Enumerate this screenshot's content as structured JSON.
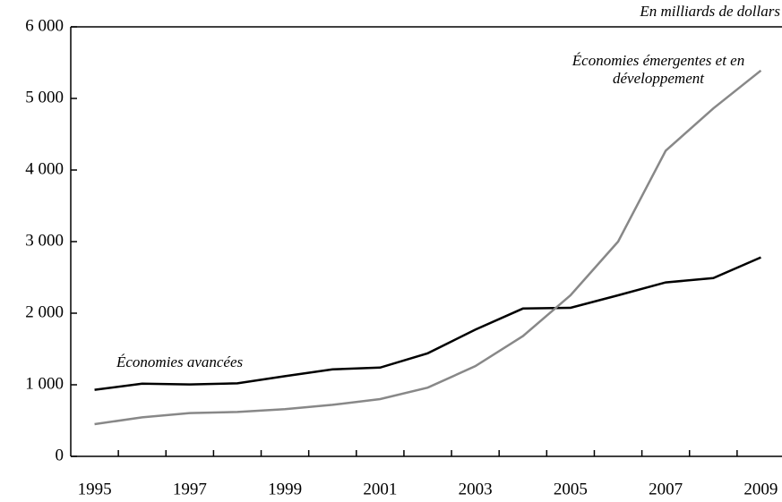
{
  "chart_data": {
    "type": "line",
    "subtitle": "En milliards de dollars",
    "categories": [
      "1995",
      null,
      "1997",
      null,
      "1999",
      null,
      "2001",
      null,
      "2003",
      null,
      "2005",
      null,
      "2007",
      null,
      "2009"
    ],
    "series": [
      {
        "name": "Économies avancées",
        "color": "#000000",
        "values": [
          930,
          1015,
          1005,
          1020,
          1120,
          1215,
          1240,
          1440,
          1770,
          2065,
          2075,
          2250,
          2430,
          2490,
          2780
        ]
      },
      {
        "name": "Économies émergentes et en développement",
        "color": "#888888",
        "values": [
          450,
          545,
          605,
          620,
          660,
          720,
          800,
          960,
          1260,
          1680,
          2250,
          3000,
          4270,
          4860,
          5390
        ]
      }
    ],
    "ylim": [
      0,
      6000
    ],
    "yticks": [
      0,
      {
        "value": 1000,
        "label": "1 000"
      },
      {
        "value": 2000,
        "label": "2 000"
      },
      {
        "value": 3000,
        "label": "3 000"
      },
      {
        "value": 4000,
        "label": "4 000"
      },
      {
        "value": 5000,
        "label": "5 000"
      },
      {
        "value": 6000,
        "label": "6 000"
      }
    ]
  }
}
